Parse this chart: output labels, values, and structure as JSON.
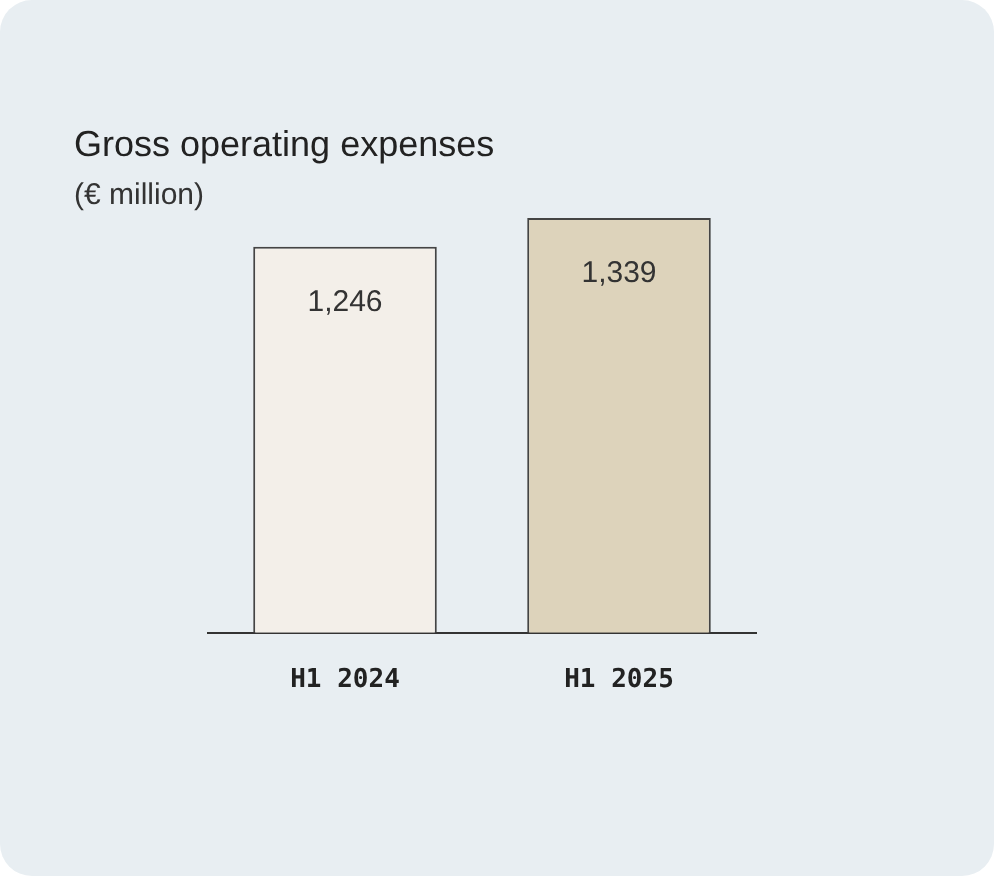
{
  "chart_data": {
    "type": "bar",
    "title": "Gross operating expenses",
    "subtitle": "(€ million)",
    "categories": [
      "H1 2024",
      "H1 2025"
    ],
    "values": [
      1246,
      1339
    ],
    "value_labels": [
      "1,246",
      "1,339"
    ],
    "colors": [
      "#f3efe9",
      "#ddd3bb"
    ],
    "grid": false,
    "legend": false
  }
}
